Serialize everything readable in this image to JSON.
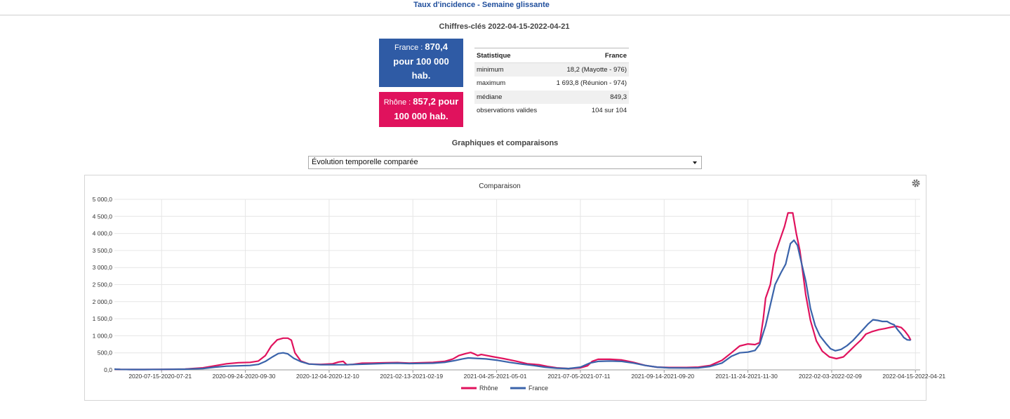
{
  "header": {
    "title": "Taux d'incidence - Semaine glissante"
  },
  "keyfigures": {
    "title": "Chiffres-clés 2022-04-15-2022-04-21",
    "france": {
      "label": "France : ",
      "value_line1": "870,4",
      "value_line2": "pour 100 000",
      "value_line3": "hab."
    },
    "rhone": {
      "label": "Rhône : ",
      "value_line1": "857,2 pour",
      "value_line2": "100 000 hab."
    }
  },
  "stats_table": {
    "headers": [
      "Statistique",
      "France"
    ],
    "rows": [
      [
        "minimum",
        "18,2 (Mayotte - 976)"
      ],
      [
        "maximum",
        "1 693,8 (Réunion - 974)"
      ],
      [
        "médiane",
        "849,3"
      ],
      [
        "observations valides",
        "104 sur 104"
      ]
    ]
  },
  "graphs": {
    "title": "Graphiques et comparaisons",
    "selected_option": "Évolution temporelle comparée"
  },
  "colors": {
    "rhone": "#e0125d",
    "france": "#3a63aa",
    "title": "#1f4e9c"
  },
  "chart_data": {
    "type": "line",
    "title": "Comparaison",
    "ylim": [
      0,
      5000
    ],
    "y_ticks": [
      "0,0",
      "500,0",
      "1 000,0",
      "1 500,0",
      "2 000,0",
      "2 500,0",
      "3 000,0",
      "3 500,0",
      "4 000,0",
      "4 500,0",
      "5 000,0"
    ],
    "x_tick_labels": [
      "2020-07-15-2020-07-21",
      "2020-09-24-2020-09-30",
      "2020-12-04-2020-12-10",
      "2021-02-13-2021-02-19",
      "2021-04-25-2021-05-01",
      "2021-07-05-2021-07-11",
      "2021-09-14-2021-09-20",
      "2021-11-24-2021-11-30",
      "2022-02-03-2022-02-09",
      "2022-04-15-2022-04-21"
    ],
    "x_tick_days": [
      200,
      271,
      342,
      413,
      484,
      555,
      626,
      697,
      768,
      839
    ],
    "x_range_days": [
      160,
      843
    ],
    "grid": true,
    "legend_position": "bottom",
    "series": [
      {
        "name": "Rhône",
        "color": "#e0125d",
        "points": [
          [
            160,
            20
          ],
          [
            165,
            15
          ],
          [
            175,
            10
          ],
          [
            185,
            10
          ],
          [
            200,
            15
          ],
          [
            220,
            25
          ],
          [
            235,
            60
          ],
          [
            245,
            120
          ],
          [
            255,
            180
          ],
          [
            265,
            210
          ],
          [
            275,
            220
          ],
          [
            282,
            260
          ],
          [
            288,
            420
          ],
          [
            293,
            700
          ],
          [
            298,
            880
          ],
          [
            303,
            930
          ],
          [
            307,
            930
          ],
          [
            310,
            870
          ],
          [
            313,
            500
          ],
          [
            318,
            260
          ],
          [
            325,
            170
          ],
          [
            335,
            160
          ],
          [
            345,
            180
          ],
          [
            350,
            230
          ],
          [
            354,
            250
          ],
          [
            357,
            150
          ],
          [
            362,
            160
          ],
          [
            370,
            195
          ],
          [
            378,
            200
          ],
          [
            390,
            210
          ],
          [
            400,
            215
          ],
          [
            410,
            200
          ],
          [
            420,
            210
          ],
          [
            430,
            220
          ],
          [
            440,
            250
          ],
          [
            447,
            320
          ],
          [
            452,
            420
          ],
          [
            458,
            480
          ],
          [
            462,
            510
          ],
          [
            465,
            470
          ],
          [
            468,
            420
          ],
          [
            471,
            450
          ],
          [
            480,
            390
          ],
          [
            490,
            330
          ],
          [
            500,
            260
          ],
          [
            510,
            180
          ],
          [
            520,
            150
          ],
          [
            527,
            100
          ],
          [
            535,
            60
          ],
          [
            545,
            40
          ],
          [
            555,
            60
          ],
          [
            561,
            120
          ],
          [
            565,
            250
          ],
          [
            570,
            310
          ],
          [
            580,
            310
          ],
          [
            590,
            290
          ],
          [
            600,
            220
          ],
          [
            610,
            130
          ],
          [
            620,
            80
          ],
          [
            630,
            70
          ],
          [
            645,
            70
          ],
          [
            655,
            80
          ],
          [
            665,
            130
          ],
          [
            675,
            280
          ],
          [
            683,
            500
          ],
          [
            690,
            700
          ],
          [
            697,
            760
          ],
          [
            703,
            740
          ],
          [
            707,
            800
          ],
          [
            710,
            1500
          ],
          [
            712,
            2100
          ],
          [
            716,
            2500
          ],
          [
            720,
            3400
          ],
          [
            724,
            3800
          ],
          [
            728,
            4200
          ],
          [
            731,
            4600
          ],
          [
            735,
            4600
          ],
          [
            738,
            4000
          ],
          [
            741,
            3500
          ],
          [
            743,
            3000
          ],
          [
            746,
            2200
          ],
          [
            750,
            1450
          ],
          [
            755,
            850
          ],
          [
            760,
            550
          ],
          [
            766,
            380
          ],
          [
            772,
            330
          ],
          [
            778,
            380
          ],
          [
            783,
            550
          ],
          [
            788,
            720
          ],
          [
            793,
            880
          ],
          [
            797,
            1050
          ],
          [
            802,
            1120
          ],
          [
            808,
            1180
          ],
          [
            813,
            1210
          ],
          [
            818,
            1250
          ],
          [
            823,
            1280
          ],
          [
            827,
            1240
          ],
          [
            830,
            1140
          ],
          [
            833,
            1000
          ],
          [
            835,
            870
          ]
        ]
      },
      {
        "name": "France",
        "color": "#3a63aa",
        "points": [
          [
            160,
            20
          ],
          [
            165,
            15
          ],
          [
            175,
            10
          ],
          [
            185,
            10
          ],
          [
            200,
            15
          ],
          [
            220,
            20
          ],
          [
            235,
            40
          ],
          [
            245,
            80
          ],
          [
            255,
            110
          ],
          [
            265,
            120
          ],
          [
            275,
            130
          ],
          [
            282,
            160
          ],
          [
            288,
            250
          ],
          [
            294,
            380
          ],
          [
            299,
            480
          ],
          [
            303,
            500
          ],
          [
            307,
            470
          ],
          [
            312,
            340
          ],
          [
            318,
            240
          ],
          [
            325,
            170
          ],
          [
            335,
            150
          ],
          [
            345,
            150
          ],
          [
            355,
            150
          ],
          [
            365,
            160
          ],
          [
            375,
            170
          ],
          [
            390,
            190
          ],
          [
            400,
            195
          ],
          [
            410,
            185
          ],
          [
            420,
            190
          ],
          [
            430,
            195
          ],
          [
            440,
            220
          ],
          [
            448,
            270
          ],
          [
            455,
            320
          ],
          [
            460,
            350
          ],
          [
            465,
            340
          ],
          [
            475,
            320
          ],
          [
            485,
            280
          ],
          [
            495,
            220
          ],
          [
            505,
            170
          ],
          [
            515,
            130
          ],
          [
            525,
            80
          ],
          [
            535,
            50
          ],
          [
            545,
            40
          ],
          [
            555,
            80
          ],
          [
            563,
            200
          ],
          [
            570,
            250
          ],
          [
            580,
            260
          ],
          [
            590,
            250
          ],
          [
            600,
            200
          ],
          [
            610,
            130
          ],
          [
            620,
            80
          ],
          [
            630,
            60
          ],
          [
            645,
            55
          ],
          [
            655,
            60
          ],
          [
            665,
            100
          ],
          [
            675,
            200
          ],
          [
            683,
            400
          ],
          [
            690,
            500
          ],
          [
            697,
            520
          ],
          [
            703,
            570
          ],
          [
            707,
            750
          ],
          [
            712,
            1300
          ],
          [
            716,
            1900
          ],
          [
            720,
            2500
          ],
          [
            725,
            2850
          ],
          [
            729,
            3100
          ],
          [
            733,
            3700
          ],
          [
            736,
            3800
          ],
          [
            739,
            3650
          ],
          [
            742,
            3200
          ],
          [
            746,
            2600
          ],
          [
            750,
            1800
          ],
          [
            754,
            1300
          ],
          [
            758,
            1000
          ],
          [
            763,
            780
          ],
          [
            767,
            620
          ],
          [
            771,
            560
          ],
          [
            776,
            600
          ],
          [
            781,
            710
          ],
          [
            786,
            860
          ],
          [
            791,
            1050
          ],
          [
            795,
            1200
          ],
          [
            799,
            1350
          ],
          [
            803,
            1470
          ],
          [
            807,
            1450
          ],
          [
            811,
            1420
          ],
          [
            815,
            1420
          ],
          [
            818,
            1360
          ],
          [
            821,
            1320
          ],
          [
            824,
            1170
          ],
          [
            827,
            1050
          ],
          [
            829,
            950
          ],
          [
            832,
            880
          ],
          [
            835,
            870
          ]
        ]
      }
    ]
  }
}
